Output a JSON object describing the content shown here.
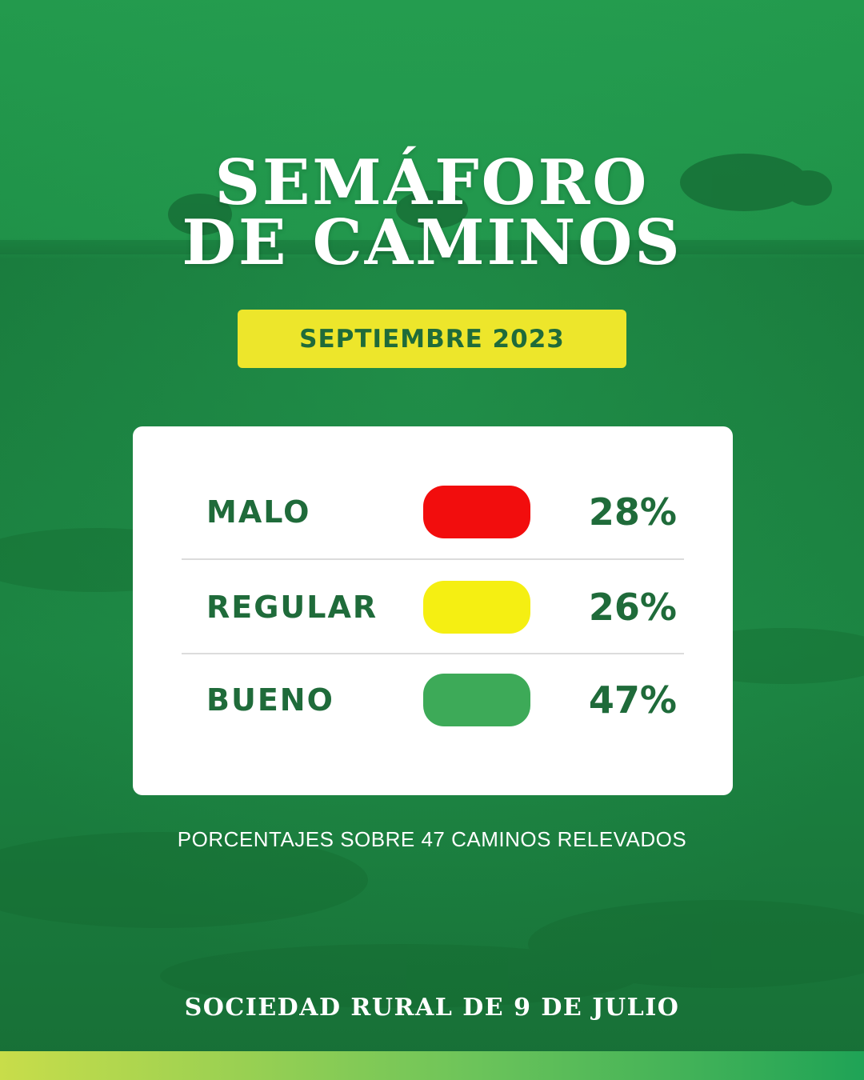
{
  "header": {
    "title_line1": "SEMÁFORO",
    "title_line2": "DE CAMINOS"
  },
  "period_badge": {
    "label": "SEPTIEMBRE 2023"
  },
  "status_card": {
    "rows": [
      {
        "label": "MALO",
        "percent_text": "28%",
        "percent": 28,
        "color": "#f20d0d"
      },
      {
        "label": "REGULAR",
        "percent_text": "26%",
        "percent": 26,
        "color": "#f5ef12"
      },
      {
        "label": "BUENO",
        "percent_text": "47%",
        "percent": 47,
        "color": "#3daa58"
      }
    ]
  },
  "note": "PORCENTAJES SOBRE 47 CAMINOS RELEVADOS",
  "footer": "SOCIEDAD RURAL DE 9 DE JULIO",
  "colors": {
    "background_green": "#1e8a45",
    "text_green": "#1f6b3a",
    "badge_yellow": "#ede62b",
    "bar_gradient_start": "#c8dd4a",
    "bar_gradient_end": "#1fa356"
  }
}
